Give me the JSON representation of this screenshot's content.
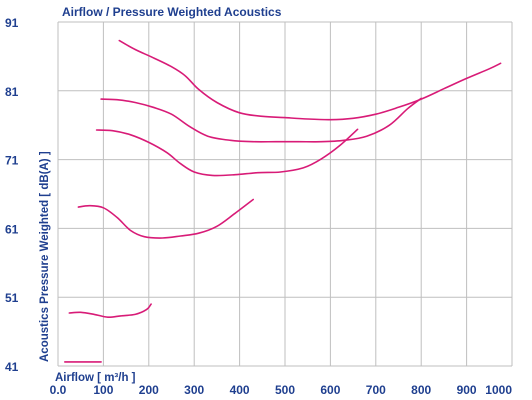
{
  "chart_data": {
    "type": "line",
    "title": "Airflow / Pressure Weighted Acoustics",
    "xlabel": "Airflow [ m³/h ]",
    "ylabel": "Acoustics Pressure Weighted [ dB(A) ]",
    "xlim": [
      0,
      1000
    ],
    "ylim": [
      41,
      91
    ],
    "x_ticks": [
      0,
      100,
      200,
      300,
      400,
      500,
      600,
      700,
      800,
      900,
      1000
    ],
    "y_ticks": [
      41,
      51,
      61,
      71,
      81,
      91
    ],
    "x_tick_labels": [
      "0.0",
      "100",
      "200",
      "300",
      "400",
      "500",
      "600",
      "700",
      "800",
      "900",
      "1000"
    ],
    "y_tick_labels": [
      "41",
      "51",
      "61",
      "71",
      "81",
      "91"
    ],
    "grid": true,
    "line_color": "#d81b77",
    "grid_color": "#bfbfbf",
    "text_color": "#1f3f8f",
    "series": [
      {
        "x": [
          135,
          170,
          210,
          250,
          280,
          310,
          350,
          400,
          450,
          500,
          550,
          600,
          650,
          700,
          750,
          800,
          850,
          900,
          950,
          975
        ],
        "y": [
          88.3,
          87.0,
          85.8,
          84.5,
          83.2,
          81.2,
          79.3,
          77.8,
          77.3,
          77.1,
          76.9,
          76.8,
          77.0,
          77.6,
          78.6,
          79.8,
          81.3,
          82.8,
          84.2,
          85.0
        ]
      },
      {
        "x": [
          95,
          130,
          170,
          210,
          250,
          290,
          330,
          380,
          430,
          480,
          530,
          580,
          630,
          680,
          730,
          770,
          800
        ],
        "y": [
          79.8,
          79.7,
          79.3,
          78.6,
          77.6,
          75.8,
          74.4,
          73.8,
          73.6,
          73.6,
          73.6,
          73.6,
          73.8,
          74.4,
          76.0,
          78.4,
          79.9
        ]
      },
      {
        "x": [
          85,
          120,
          160,
          200,
          240,
          270,
          300,
          340,
          390,
          440,
          490,
          540,
          580,
          620,
          660
        ],
        "y": [
          75.3,
          75.2,
          74.6,
          73.5,
          72.0,
          70.4,
          69.2,
          68.7,
          68.8,
          69.1,
          69.2,
          69.8,
          71.1,
          73.0,
          75.4
        ]
      },
      {
        "x": [
          45,
          70,
          100,
          130,
          160,
          190,
          230,
          270,
          310,
          350,
          390,
          430
        ],
        "y": [
          64.1,
          64.3,
          64.0,
          62.6,
          60.7,
          59.8,
          59.6,
          59.9,
          60.3,
          61.3,
          63.2,
          65.2
        ]
      },
      {
        "x": [
          25,
          50,
          80,
          110,
          140,
          170,
          195,
          205
        ],
        "y": [
          48.7,
          48.8,
          48.5,
          48.1,
          48.3,
          48.5,
          49.2,
          50.0
        ]
      },
      {
        "x": [
          15,
          40,
          70,
          95
        ],
        "y": [
          41.6,
          41.6,
          41.6,
          41.6
        ]
      }
    ]
  }
}
